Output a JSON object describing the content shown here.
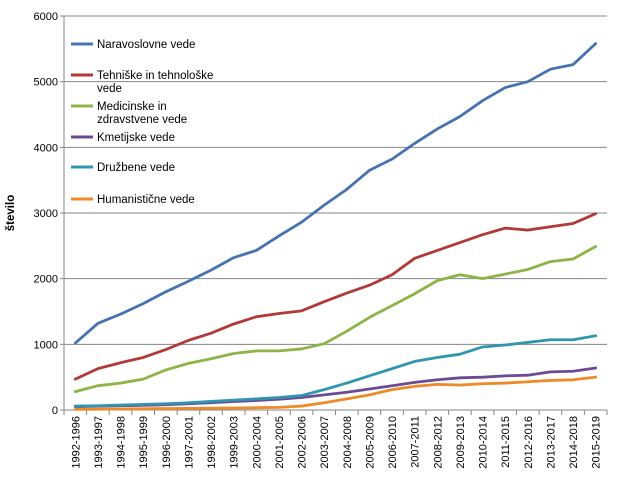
{
  "chart_data": {
    "type": "line",
    "ylabel": "število",
    "ylim": [
      0,
      6000
    ],
    "yticks": [
      "0",
      "1000",
      "2000",
      "3000",
      "4000",
      "5000",
      "6000"
    ],
    "grid": "horizontal",
    "legend": "top-left, inside plot",
    "categories": [
      "1992-1996",
      "1993-1997",
      "1994-1998",
      "1995-1999",
      "1996-2000",
      "1997-2001",
      "1998-2002",
      "1999-2003",
      "2000-2004",
      "2001-2005",
      "2002-2006",
      "2003-2007",
      "2004-2008",
      "2005-2009",
      "2006-2010",
      "2007-2011",
      "2008-2012",
      "2009-2013",
      "2010-2014",
      "2011-2015",
      "2012-2016",
      "2013-2017",
      "2014-2018",
      "2015-2019"
    ],
    "series": [
      {
        "name": "Naravoslovne vede",
        "legend_lines": [
          "Naravoslovne vede"
        ],
        "color": "#4672b0",
        "values": [
          1020,
          1320,
          1460,
          1620,
          1800,
          1960,
          2130,
          2320,
          2430,
          2650,
          2860,
          3120,
          3360,
          3650,
          3820,
          4060,
          4280,
          4470,
          4710,
          4910,
          5000,
          5190,
          5260,
          5580
        ]
      },
      {
        "name": "Tehniške in tehnološke vede",
        "legend_lines": [
          "Tehniške in tehnološke",
          "vede"
        ],
        "color": "#b13a38",
        "values": [
          470,
          630,
          720,
          800,
          920,
          1060,
          1170,
          1310,
          1420,
          1470,
          1510,
          1650,
          1780,
          1900,
          2060,
          2310,
          2430,
          2550,
          2670,
          2770,
          2740,
          2790,
          2840,
          2990
        ]
      },
      {
        "name": "Medicinske in zdravstvene vede",
        "legend_lines": [
          "Medicinske in",
          "zdravstvene vede"
        ],
        "color": "#8db446",
        "values": [
          280,
          370,
          410,
          470,
          610,
          710,
          780,
          860,
          900,
          900,
          930,
          1010,
          1200,
          1410,
          1590,
          1770,
          1970,
          2060,
          2000,
          2070,
          2140,
          2260,
          2300,
          2490
        ]
      },
      {
        "name": "Kmetijske vede",
        "legend_lines": [
          "Kmetijske vede"
        ],
        "color": "#6c4a96",
        "values": [
          50,
          60,
          65,
          70,
          80,
          95,
          110,
          130,
          145,
          165,
          190,
          230,
          270,
          320,
          370,
          420,
          460,
          490,
          500,
          520,
          530,
          580,
          590,
          640
        ]
      },
      {
        "name": "Družbene vede",
        "legend_lines": [
          "Družbene vede"
        ],
        "color": "#3096b0",
        "values": [
          60,
          65,
          75,
          85,
          95,
          110,
          130,
          150,
          170,
          190,
          220,
          310,
          410,
          520,
          630,
          740,
          800,
          850,
          960,
          990,
          1030,
          1070,
          1070,
          1130
        ]
      },
      {
        "name": "Humanistične vede",
        "legend_lines": [
          "Humanistične vede"
        ],
        "color": "#ef8a28",
        "values": [
          10,
          12,
          15,
          18,
          22,
          25,
          28,
          30,
          35,
          40,
          60,
          110,
          170,
          230,
          310,
          360,
          390,
          380,
          400,
          410,
          430,
          450,
          460,
          500
        ]
      }
    ]
  }
}
